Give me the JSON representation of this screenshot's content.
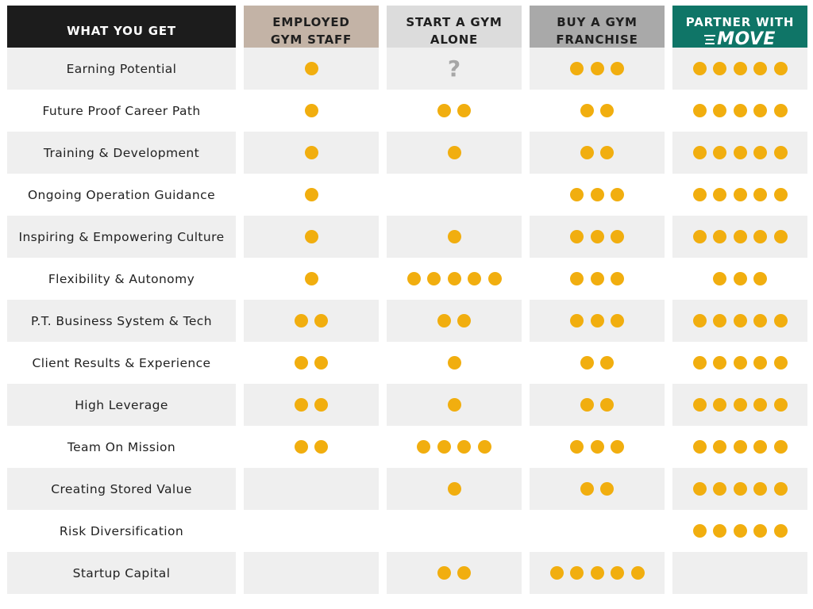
{
  "header": {
    "what_label": "WHAT YOU GET",
    "columns": [
      {
        "line1": "EMPLOYED",
        "line2": "GYM STAFF"
      },
      {
        "line1": "START A GYM",
        "line2": "ALONE"
      },
      {
        "line1": "BUY A GYM",
        "line2": "FRANCHISE"
      },
      {
        "line1": "PARTNER WITH",
        "logo": "MOVE"
      }
    ]
  },
  "colors": {
    "dot": "#f1ae0f",
    "header_what": "#1c1c1c",
    "header_employed": "#c3b3a6",
    "header_start": "#dcdcdc",
    "header_franchise": "#a9a9a9",
    "header_move": "#0f7567",
    "row_shade": "#efefef"
  },
  "rows": [
    {
      "label": "Earning Potential",
      "ratings": [
        1,
        "?",
        3,
        5
      ]
    },
    {
      "label": "Future Proof Career Path",
      "ratings": [
        1,
        2,
        2,
        5
      ]
    },
    {
      "label": "Training & Development",
      "ratings": [
        1,
        1,
        2,
        5
      ]
    },
    {
      "label": "Ongoing Operation Guidance",
      "ratings": [
        1,
        0,
        3,
        5
      ]
    },
    {
      "label": "Inspiring & Empowering Culture",
      "ratings": [
        1,
        1,
        3,
        5
      ]
    },
    {
      "label": "Flexibility & Autonomy",
      "ratings": [
        1,
        5,
        3,
        3
      ]
    },
    {
      "label": "P.T. Business System & Tech",
      "ratings": [
        2,
        2,
        3,
        5
      ]
    },
    {
      "label": "Client Results & Experience",
      "ratings": [
        2,
        1,
        2,
        5
      ]
    },
    {
      "label": "High Leverage",
      "ratings": [
        2,
        1,
        2,
        5
      ]
    },
    {
      "label": "Team On Mission",
      "ratings": [
        2,
        4,
        3,
        5
      ]
    },
    {
      "label": "Creating Stored Value",
      "ratings": [
        0,
        1,
        2,
        5
      ]
    },
    {
      "label": "Risk Diversification",
      "ratings": [
        0,
        0,
        0,
        5
      ]
    },
    {
      "label": "Startup Capital",
      "ratings": [
        0,
        2,
        5,
        0
      ]
    }
  ]
}
